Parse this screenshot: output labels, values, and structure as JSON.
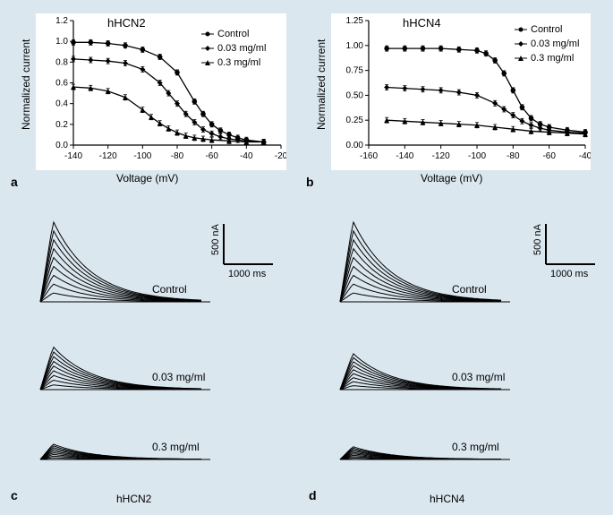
{
  "background_color": "#dbe7ef",
  "panelA": {
    "label": "a",
    "title": "hHCN2",
    "xlabel": "Voltage (mV)",
    "ylabel": "Normalized current",
    "xlim": [
      -140,
      -20
    ],
    "ylim": [
      0,
      1.2
    ],
    "xticks": [
      -140,
      -120,
      -100,
      -80,
      -60,
      -40,
      -20
    ],
    "yticks": [
      0.0,
      0.2,
      0.4,
      0.6,
      0.8,
      1.0,
      1.2
    ],
    "series": [
      {
        "name": "Control",
        "marker": "circle",
        "color": "#000000",
        "x": [
          -140,
          -130,
          -120,
          -110,
          -100,
          -90,
          -80,
          -70,
          -65,
          -60,
          -55,
          -50,
          -45,
          -40,
          -30
        ],
        "y": [
          0.99,
          0.99,
          0.98,
          0.96,
          0.92,
          0.85,
          0.7,
          0.42,
          0.3,
          0.2,
          0.14,
          0.1,
          0.07,
          0.05,
          0.03
        ]
      },
      {
        "name": "0.03 mg/ml",
        "marker": "diamond",
        "color": "#000000",
        "x": [
          -140,
          -130,
          -120,
          -110,
          -100,
          -90,
          -85,
          -80,
          -75,
          -70,
          -65,
          -60,
          -55,
          -50,
          -45,
          -40,
          -30
        ],
        "y": [
          0.83,
          0.82,
          0.81,
          0.79,
          0.73,
          0.6,
          0.5,
          0.4,
          0.3,
          0.22,
          0.15,
          0.11,
          0.08,
          0.06,
          0.05,
          0.04,
          0.03
        ]
      },
      {
        "name": "0.3 mg/ml",
        "marker": "triangle",
        "color": "#000000",
        "x": [
          -140,
          -130,
          -120,
          -110,
          -100,
          -95,
          -90,
          -85,
          -80,
          -75,
          -70,
          -65,
          -60,
          -50,
          -40,
          -30
        ],
        "y": [
          0.56,
          0.55,
          0.52,
          0.46,
          0.34,
          0.27,
          0.21,
          0.16,
          0.12,
          0.09,
          0.07,
          0.06,
          0.05,
          0.04,
          0.03,
          0.03
        ]
      }
    ],
    "chart_bg": "#ffffff",
    "label_fontsize": 12,
    "title_fontsize": 13
  },
  "panelB": {
    "label": "b",
    "title": "hHCN4",
    "xlabel": "Voltage (mV)",
    "ylabel": "Normalized current",
    "xlim": [
      -160,
      -40
    ],
    "ylim": [
      0,
      1.25
    ],
    "xticks": [
      -160,
      -140,
      -120,
      -100,
      -80,
      -60,
      -40
    ],
    "yticks": [
      0.0,
      0.25,
      0.5,
      0.75,
      1.0,
      1.25
    ],
    "series": [
      {
        "name": "Control",
        "marker": "circle",
        "color": "#000000",
        "x": [
          -150,
          -140,
          -130,
          -120,
          -110,
          -100,
          -95,
          -90,
          -85,
          -80,
          -75,
          -70,
          -65,
          -60,
          -50,
          -40
        ],
        "y": [
          0.97,
          0.97,
          0.97,
          0.97,
          0.96,
          0.95,
          0.92,
          0.85,
          0.72,
          0.55,
          0.38,
          0.27,
          0.21,
          0.18,
          0.15,
          0.13
        ]
      },
      {
        "name": "0.03 mg/ml",
        "marker": "diamond",
        "color": "#000000",
        "x": [
          -150,
          -140,
          -130,
          -120,
          -110,
          -100,
          -90,
          -85,
          -80,
          -75,
          -70,
          -65,
          -60,
          -50,
          -40
        ],
        "y": [
          0.58,
          0.57,
          0.56,
          0.55,
          0.53,
          0.5,
          0.42,
          0.36,
          0.3,
          0.24,
          0.2,
          0.17,
          0.15,
          0.13,
          0.12
        ]
      },
      {
        "name": "0.3 mg/ml",
        "marker": "triangle",
        "color": "#000000",
        "x": [
          -150,
          -140,
          -130,
          -120,
          -110,
          -100,
          -90,
          -80,
          -70,
          -60,
          -50,
          -40
        ],
        "y": [
          0.25,
          0.24,
          0.23,
          0.22,
          0.21,
          0.2,
          0.18,
          0.16,
          0.14,
          0.13,
          0.12,
          0.11
        ]
      }
    ],
    "chart_bg": "#ffffff",
    "label_fontsize": 12,
    "title_fontsize": 13
  },
  "panelC": {
    "label": "c",
    "bottom_title": "hHCN2",
    "traces": [
      {
        "label": "Control",
        "peak": 1.0
      },
      {
        "label": "0.03 mg/ml",
        "peak": 0.65
      },
      {
        "label": "0.3 mg/ml",
        "peak": 0.3
      }
    ],
    "scalebar": {
      "y_label": "500 nA",
      "x_label": "1000 ms",
      "color": "#000000"
    }
  },
  "panelD": {
    "label": "d",
    "bottom_title": "hHCN4",
    "traces": [
      {
        "label": "Control",
        "peak": 1.0
      },
      {
        "label": "0.03 mg/ml",
        "peak": 0.55
      },
      {
        "label": "0.3 mg/ml",
        "peak": 0.25
      }
    ],
    "scalebar": {
      "y_label": "500 nA",
      "x_label": "1000 ms",
      "color": "#000000"
    }
  }
}
